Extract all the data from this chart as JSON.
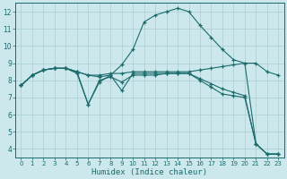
{
  "background_color": "#cde8ed",
  "grid_color": "#a8cdd4",
  "line_color": "#1a6b6b",
  "xlabel": "Humidex (Indice chaleur)",
  "xlim": [
    -0.5,
    23.5
  ],
  "ylim": [
    3.5,
    12.5
  ],
  "yticks": [
    4,
    5,
    6,
    7,
    8,
    9,
    10,
    11,
    12
  ],
  "xticks": [
    0,
    1,
    2,
    3,
    4,
    5,
    6,
    7,
    8,
    9,
    10,
    11,
    12,
    13,
    14,
    15,
    16,
    17,
    18,
    19,
    20,
    21,
    22,
    23
  ],
  "line1_x": [
    0,
    1,
    2,
    3,
    4,
    5,
    6,
    7,
    8,
    9,
    10,
    11,
    12,
    13,
    14,
    15,
    16,
    17,
    18,
    19,
    20,
    21,
    22,
    23
  ],
  "line1_y": [
    7.7,
    8.3,
    8.6,
    8.7,
    8.7,
    8.5,
    8.3,
    8.2,
    8.3,
    8.9,
    9.8,
    11.4,
    11.8,
    12.0,
    12.2,
    12.0,
    11.2,
    10.5,
    9.8,
    9.2,
    9.0,
    4.3,
    3.7,
    3.7
  ],
  "line2_x": [
    0,
    1,
    2,
    3,
    4,
    5,
    6,
    7,
    8,
    9,
    10,
    11,
    12,
    13,
    14,
    15,
    16,
    17,
    18,
    19,
    20,
    21,
    22,
    23
  ],
  "line2_y": [
    7.7,
    8.3,
    8.6,
    8.7,
    8.7,
    8.5,
    8.3,
    8.3,
    8.4,
    8.4,
    8.5,
    8.5,
    8.5,
    8.5,
    8.5,
    8.5,
    8.6,
    8.7,
    8.8,
    8.9,
    9.0,
    9.0,
    8.5,
    8.3
  ],
  "line3_x": [
    0,
    1,
    2,
    3,
    4,
    5,
    6,
    7,
    8,
    9,
    10,
    11,
    12,
    13,
    14,
    15,
    16,
    17,
    18,
    19,
    20,
    21,
    22,
    23
  ],
  "line3_y": [
    7.7,
    8.3,
    8.6,
    8.7,
    8.7,
    8.5,
    6.6,
    7.9,
    8.3,
    7.4,
    8.4,
    8.4,
    8.4,
    8.4,
    8.4,
    8.4,
    8.1,
    7.8,
    7.5,
    7.3,
    7.1,
    4.3,
    3.7,
    3.7
  ],
  "line4_x": [
    0,
    1,
    2,
    3,
    4,
    5,
    6,
    7,
    8,
    9,
    10,
    11,
    12,
    13,
    14,
    15,
    16,
    17,
    18,
    19,
    20,
    21,
    22,
    23
  ],
  "line4_y": [
    7.7,
    8.3,
    8.6,
    8.7,
    8.7,
    8.4,
    6.6,
    8.0,
    8.2,
    7.9,
    8.3,
    8.3,
    8.3,
    8.4,
    8.4,
    8.4,
    8.0,
    7.6,
    7.2,
    7.1,
    7.0,
    4.3,
    3.7,
    3.7
  ]
}
